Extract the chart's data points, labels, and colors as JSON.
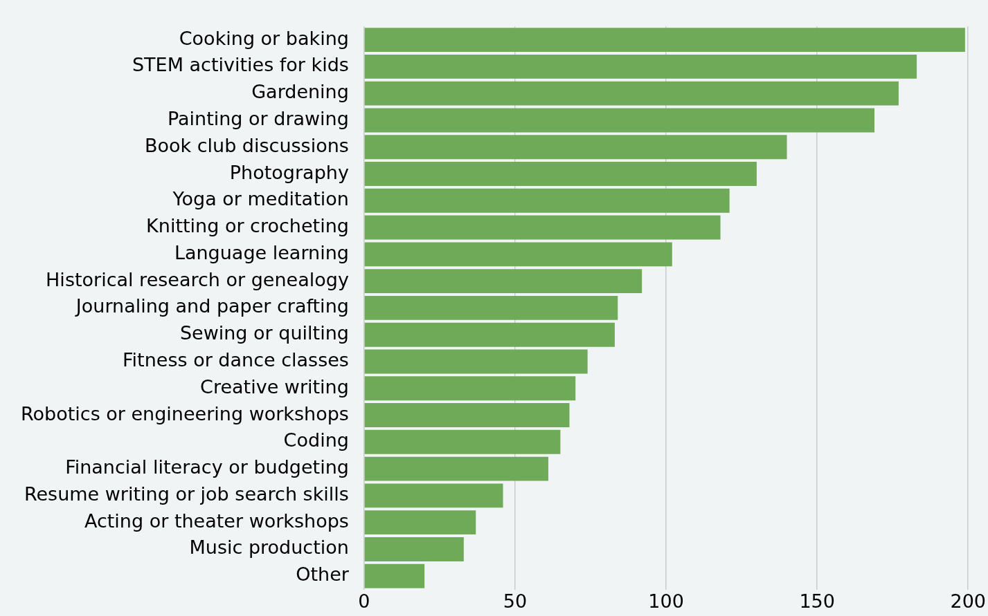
{
  "chart_data": {
    "type": "bar",
    "orientation": "horizontal",
    "categories": [
      "Cooking or baking",
      "STEM activities for kids",
      "Gardening",
      "Painting or drawing",
      "Book club discussions",
      "Photography",
      "Yoga or meditation",
      "Knitting or crocheting",
      "Language learning",
      "Historical research or genealogy",
      "Journaling and paper crafting",
      "Sewing or quilting",
      "Fitness or dance classes",
      "Creative writing",
      "Robotics or engineering workshops",
      "Coding",
      "Financial literacy or budgeting",
      "Resume writing or job search skills",
      "Acting or theater workshops",
      "Music production",
      "Other"
    ],
    "values": [
      199,
      183,
      177,
      169,
      140,
      130,
      121,
      118,
      102,
      92,
      84,
      83,
      74,
      70,
      68,
      65,
      61,
      46,
      37,
      33,
      20
    ],
    "color": "#6faa58",
    "xlim": [
      0,
      200
    ],
    "xticks": [
      0,
      50,
      100,
      150,
      200
    ],
    "grid": "x"
  }
}
